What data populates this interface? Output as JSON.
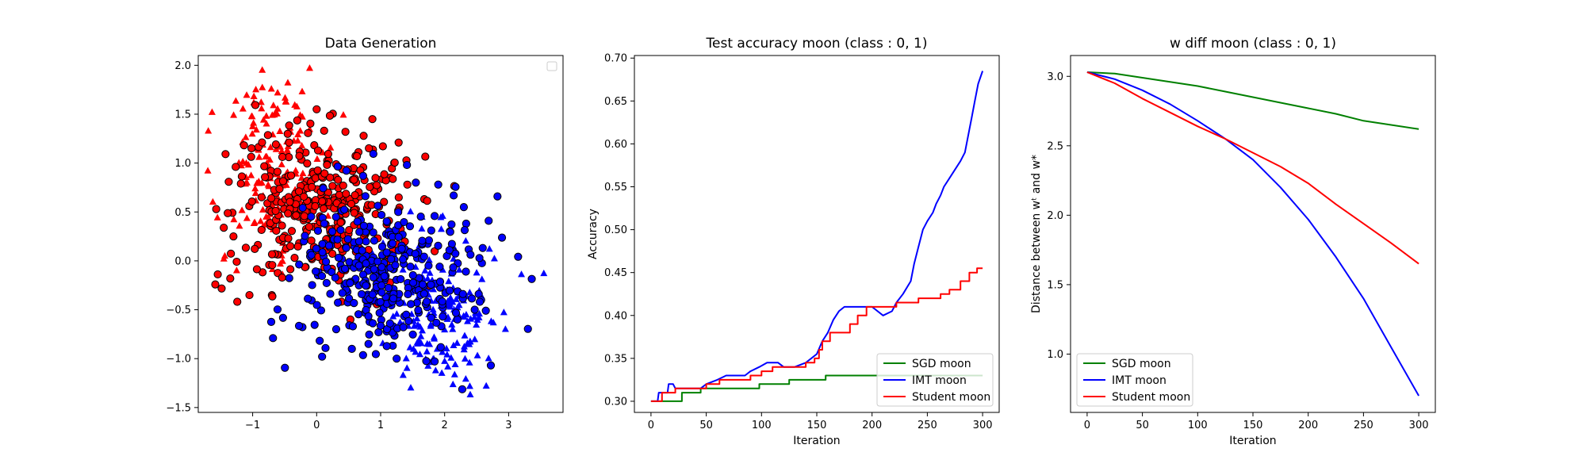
{
  "chart_data": [
    {
      "type": "scatter",
      "title": "Data Generation",
      "xlabel": "",
      "ylabel": "",
      "xlim": [
        -1.85,
        3.85
      ],
      "ylim": [
        -1.55,
        2.1
      ],
      "xticks": [
        -1,
        0,
        1,
        2,
        3
      ],
      "yticks": [
        -1.5,
        -1.0,
        -0.5,
        0.0,
        0.5,
        1.0,
        1.5,
        2.0
      ],
      "x_tick_labels": [
        "−1",
        "0",
        "1",
        "2",
        "3"
      ],
      "y_tick_labels": [
        "−1.5",
        "−1.0",
        "−0.5",
        "0.0",
        "0.5",
        "1.0",
        "1.5",
        "2.0"
      ],
      "grid": false,
      "legend": {
        "position": "top-right",
        "entries": []
      },
      "series": [
        {
          "marker": "triangle",
          "color": "#ff0000",
          "cloud": {
            "center": [
              -0.7,
              0.95
            ],
            "spread": [
              0.38,
              0.42
            ],
            "count": 170
          },
          "points": [
            [
              -1.7,
              0.92
            ],
            [
              -1.55,
              0.44
            ],
            [
              -0.85,
              1.95
            ],
            [
              -0.45,
              1.82
            ],
            [
              -0.95,
              1.75
            ],
            [
              -1.45,
              0.02
            ],
            [
              -1.25,
              -0.1
            ]
          ]
        },
        {
          "marker": "circle",
          "color": "#ff0000",
          "edge": "#000000",
          "cloud": {
            "center": [
              0.05,
              0.55
            ],
            "spread": [
              0.72,
              0.4
            ],
            "count": 340
          },
          "points": [
            [
              -1.35,
              -0.18
            ],
            [
              -1.05,
              -0.35
            ],
            [
              -0.7,
              -0.35
            ],
            [
              0.0,
              1.55
            ],
            [
              0.45,
              1.32
            ],
            [
              1.15,
              0.85
            ],
            [
              -1.3,
              0.25
            ]
          ]
        },
        {
          "marker": "circle",
          "color": "#0000ff",
          "edge": "#000000",
          "cloud": {
            "center": [
              1.05,
              -0.15
            ],
            "spread": [
              0.72,
              0.4
            ],
            "count": 340
          },
          "points": [
            [
              0.55,
              -0.9
            ],
            [
              1.25,
              -1.0
            ],
            [
              1.9,
              0.78
            ],
            [
              2.3,
              0.55
            ],
            [
              1.55,
              0.8
            ],
            [
              -0.2,
              0.2
            ],
            [
              2.2,
              -0.6
            ]
          ]
        },
        {
          "marker": "triangle",
          "color": "#0000ff",
          "cloud": {
            "center": [
              1.9,
              -0.55
            ],
            "spread": [
              0.4,
              0.38
            ],
            "count": 170
          },
          "points": [
            [
              3.55,
              -0.13
            ],
            [
              3.2,
              -0.14
            ],
            [
              2.4,
              -1.37
            ],
            [
              2.65,
              -1.28
            ],
            [
              2.95,
              -0.7
            ],
            [
              2.7,
              0.12
            ],
            [
              1.4,
              -1.0
            ]
          ]
        }
      ]
    },
    {
      "type": "line",
      "title": "Test accuracy moon (class : 0, 1)",
      "xlabel": "Iteration",
      "ylabel": "Accuracy",
      "xlim": [
        -15,
        315
      ],
      "ylim": [
        0.287,
        0.703
      ],
      "xticks": [
        0,
        50,
        100,
        150,
        200,
        250,
        300
      ],
      "yticks": [
        0.3,
        0.35,
        0.4,
        0.45,
        0.5,
        0.55,
        0.6,
        0.65,
        0.7
      ],
      "x_tick_labels": [
        "0",
        "50",
        "100",
        "150",
        "200",
        "250",
        "300"
      ],
      "y_tick_labels": [
        "0.30",
        "0.35",
        "0.40",
        "0.45",
        "0.50",
        "0.55",
        "0.60",
        "0.65",
        "0.70"
      ],
      "grid": false,
      "legend": {
        "position": "bottom-right",
        "entries": [
          "SGD moon",
          "IMT moon",
          "Student moon"
        ]
      },
      "series": [
        {
          "name": "SGD moon",
          "color": "#008000",
          "step": true,
          "points": [
            [
              0,
              0.3
            ],
            [
              28,
              0.3
            ],
            [
              28,
              0.31
            ],
            [
              45,
              0.31
            ],
            [
              45,
              0.315
            ],
            [
              98,
              0.315
            ],
            [
              98,
              0.32
            ],
            [
              125,
              0.32
            ],
            [
              125,
              0.325
            ],
            [
              158,
              0.325
            ],
            [
              158,
              0.33
            ],
            [
              300,
              0.33
            ]
          ]
        },
        {
          "name": "IMT moon",
          "color": "#0000ff",
          "step": false,
          "points": [
            [
              0,
              0.3
            ],
            [
              6,
              0.3
            ],
            [
              7,
              0.31
            ],
            [
              15,
              0.31
            ],
            [
              16,
              0.32
            ],
            [
              20,
              0.32
            ],
            [
              22,
              0.315
            ],
            [
              45,
              0.315
            ],
            [
              50,
              0.32
            ],
            [
              60,
              0.325
            ],
            [
              68,
              0.33
            ],
            [
              85,
              0.33
            ],
            [
              90,
              0.335
            ],
            [
              98,
              0.34
            ],
            [
              105,
              0.345
            ],
            [
              115,
              0.345
            ],
            [
              120,
              0.34
            ],
            [
              130,
              0.34
            ],
            [
              140,
              0.345
            ],
            [
              150,
              0.355
            ],
            [
              155,
              0.37
            ],
            [
              160,
              0.38
            ],
            [
              165,
              0.395
            ],
            [
              170,
              0.405
            ],
            [
              175,
              0.41
            ],
            [
              200,
              0.41
            ],
            [
              210,
              0.4
            ],
            [
              218,
              0.405
            ],
            [
              222,
              0.415
            ],
            [
              228,
              0.425
            ],
            [
              235,
              0.44
            ],
            [
              238,
              0.46
            ],
            [
              242,
              0.48
            ],
            [
              246,
              0.5
            ],
            [
              250,
              0.51
            ],
            [
              255,
              0.52
            ],
            [
              258,
              0.53
            ],
            [
              262,
              0.54
            ],
            [
              265,
              0.55
            ],
            [
              270,
              0.56
            ],
            [
              275,
              0.57
            ],
            [
              280,
              0.58
            ],
            [
              284,
              0.59
            ],
            [
              287,
              0.61
            ],
            [
              290,
              0.63
            ],
            [
              293,
              0.65
            ],
            [
              296,
              0.67
            ],
            [
              300,
              0.685
            ]
          ]
        },
        {
          "name": "Student moon",
          "color": "#ff0000",
          "step": true,
          "points": [
            [
              0,
              0.3
            ],
            [
              10,
              0.3
            ],
            [
              10,
              0.31
            ],
            [
              22,
              0.31
            ],
            [
              22,
              0.315
            ],
            [
              50,
              0.315
            ],
            [
              50,
              0.32
            ],
            [
              62,
              0.32
            ],
            [
              62,
              0.325
            ],
            [
              90,
              0.325
            ],
            [
              90,
              0.33
            ],
            [
              100,
              0.33
            ],
            [
              100,
              0.335
            ],
            [
              110,
              0.335
            ],
            [
              110,
              0.34
            ],
            [
              140,
              0.34
            ],
            [
              140,
              0.345
            ],
            [
              148,
              0.345
            ],
            [
              148,
              0.35
            ],
            [
              152,
              0.35
            ],
            [
              152,
              0.36
            ],
            [
              155,
              0.36
            ],
            [
              155,
              0.37
            ],
            [
              162,
              0.37
            ],
            [
              162,
              0.38
            ],
            [
              180,
              0.38
            ],
            [
              180,
              0.39
            ],
            [
              187,
              0.39
            ],
            [
              187,
              0.4
            ],
            [
              195,
              0.4
            ],
            [
              195,
              0.41
            ],
            [
              222,
              0.41
            ],
            [
              222,
              0.415
            ],
            [
              242,
              0.415
            ],
            [
              242,
              0.42
            ],
            [
              262,
              0.42
            ],
            [
              262,
              0.425
            ],
            [
              270,
              0.425
            ],
            [
              270,
              0.43
            ],
            [
              280,
              0.43
            ],
            [
              280,
              0.44
            ],
            [
              288,
              0.44
            ],
            [
              288,
              0.45
            ],
            [
              295,
              0.45
            ],
            [
              295,
              0.455
            ],
            [
              300,
              0.455
            ]
          ]
        }
      ]
    },
    {
      "type": "line",
      "title": "w diff moon (class : 0, 1)",
      "xlabel": "Iteration",
      "ylabel": "Distance between wᵗ and w*",
      "xlim": [
        -15,
        315
      ],
      "ylim": [
        0.58,
        3.15
      ],
      "xticks": [
        0,
        50,
        100,
        150,
        200,
        250,
        300
      ],
      "yticks": [
        1.0,
        1.5,
        2.0,
        2.5,
        3.0
      ],
      "x_tick_labels": [
        "0",
        "50",
        "100",
        "150",
        "200",
        "250",
        "300"
      ],
      "y_tick_labels": [
        "1.0",
        "1.5",
        "2.0",
        "2.5",
        "3.0"
      ],
      "grid": false,
      "legend": {
        "position": "bottom-left",
        "entries": [
          "SGD moon",
          "IMT moon",
          "Student moon"
        ]
      },
      "series": [
        {
          "name": "SGD moon",
          "color": "#008000",
          "points": [
            [
              0,
              3.03
            ],
            [
              25,
              3.02
            ],
            [
              50,
              2.99
            ],
            [
              75,
              2.96
            ],
            [
              100,
              2.93
            ],
            [
              125,
              2.89
            ],
            [
              150,
              2.85
            ],
            [
              175,
              2.81
            ],
            [
              200,
              2.77
            ],
            [
              225,
              2.73
            ],
            [
              250,
              2.68
            ],
            [
              275,
              2.65
            ],
            [
              300,
              2.62
            ]
          ]
        },
        {
          "name": "IMT moon",
          "color": "#0000ff",
          "points": [
            [
              0,
              3.03
            ],
            [
              25,
              2.98
            ],
            [
              50,
              2.9
            ],
            [
              75,
              2.8
            ],
            [
              100,
              2.68
            ],
            [
              125,
              2.55
            ],
            [
              150,
              2.4
            ],
            [
              175,
              2.2
            ],
            [
              200,
              1.97
            ],
            [
              225,
              1.7
            ],
            [
              250,
              1.4
            ],
            [
              275,
              1.05
            ],
            [
              300,
              0.7
            ]
          ]
        },
        {
          "name": "Student moon",
          "color": "#ff0000",
          "points": [
            [
              0,
              3.03
            ],
            [
              25,
              2.95
            ],
            [
              50,
              2.84
            ],
            [
              75,
              2.74
            ],
            [
              100,
              2.64
            ],
            [
              125,
              2.55
            ],
            [
              150,
              2.45
            ],
            [
              175,
              2.35
            ],
            [
              200,
              2.23
            ],
            [
              225,
              2.08
            ],
            [
              250,
              1.94
            ],
            [
              275,
              1.8
            ],
            [
              300,
              1.65
            ]
          ]
        }
      ]
    }
  ]
}
